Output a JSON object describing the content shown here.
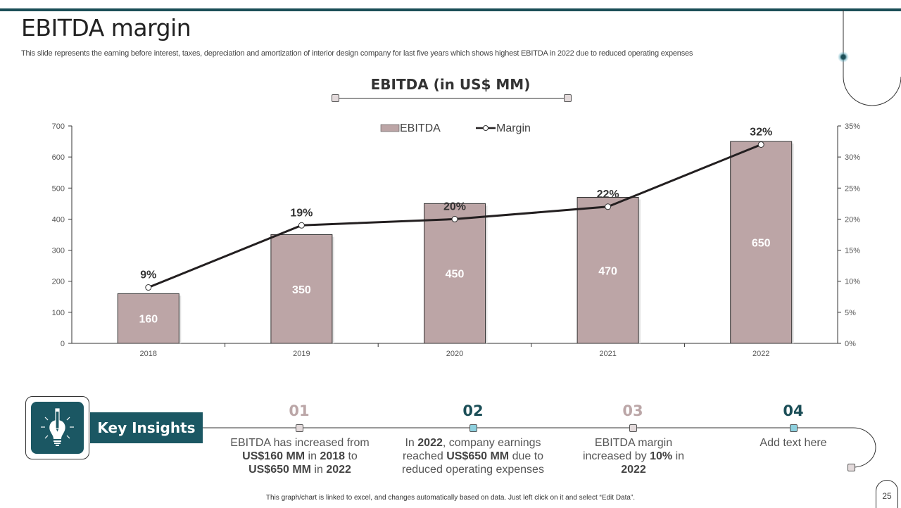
{
  "header": {
    "title": "EBITDA margin",
    "subtitle": "This slide represents the earning before interest, taxes, depreciation and amortization of interior design company for last five years which shows highest EBITDA in 2022 due to reduced operating expenses"
  },
  "chart_data": {
    "type": "bar",
    "title": "EBITDA (in US$ MM)",
    "categories": [
      "2018",
      "2019",
      "2020",
      "2021",
      "2022"
    ],
    "series": [
      {
        "name": "EBITDA",
        "type": "bar",
        "axis": "left",
        "values": [
          160,
          350,
          450,
          470,
          650
        ],
        "color": "#bca5a6"
      },
      {
        "name": "Margin",
        "type": "line",
        "axis": "right",
        "values": [
          9,
          19,
          20,
          22,
          32
        ],
        "unit": "%",
        "color": "#231f20"
      }
    ],
    "data_labels": {
      "EBITDA": [
        "160",
        "350",
        "450",
        "470",
        "650"
      ],
      "Margin": [
        "9%",
        "19%",
        "20%",
        "22%",
        "32%"
      ]
    },
    "y_left": {
      "ylim": [
        0,
        700
      ],
      "ticks": [
        "0",
        "100",
        "200",
        "300",
        "400",
        "500",
        "600",
        "700"
      ]
    },
    "y_right": {
      "ylim": [
        0,
        35
      ],
      "ticks": [
        "0%",
        "5%",
        "10%",
        "15%",
        "20%",
        "25%",
        "30%",
        "35%"
      ]
    },
    "xlabel": "",
    "ylabel": "",
    "grid": false,
    "legend": {
      "placement": "top-center",
      "entries": [
        "EBITDA",
        "Margin"
      ]
    }
  },
  "insights": {
    "label": "Key Insights",
    "icon": "lightbulb-pencil-icon",
    "steps": [
      {
        "num": "01",
        "parts": [
          [
            "EBITDA has increased from ",
            false
          ],
          [
            "US$160 MM",
            true
          ],
          [
            " in ",
            false
          ],
          [
            "2018",
            true
          ],
          [
            " to ",
            false
          ],
          [
            "US$650 MM",
            true
          ],
          [
            " in ",
            false
          ],
          [
            "2022",
            true
          ]
        ]
      },
      {
        "num": "02",
        "parts": [
          [
            "In ",
            false
          ],
          [
            "2022",
            true
          ],
          [
            ", company earnings reached ",
            false
          ],
          [
            "US$650 MM",
            true
          ],
          [
            " due to reduced operating expenses",
            false
          ]
        ]
      },
      {
        "num": "03",
        "parts": [
          [
            "EBITDA margin increased by ",
            false
          ],
          [
            "10%",
            true
          ],
          [
            " in ",
            false
          ],
          [
            "2022",
            true
          ]
        ]
      },
      {
        "num": "04",
        "parts": [
          [
            "Add text here",
            false
          ]
        ]
      }
    ]
  },
  "footer": {
    "note": "This graph/chart is linked to excel, and changes automatically based on data. Just left click on it and select “Edit Data”.",
    "page_number": "25"
  }
}
